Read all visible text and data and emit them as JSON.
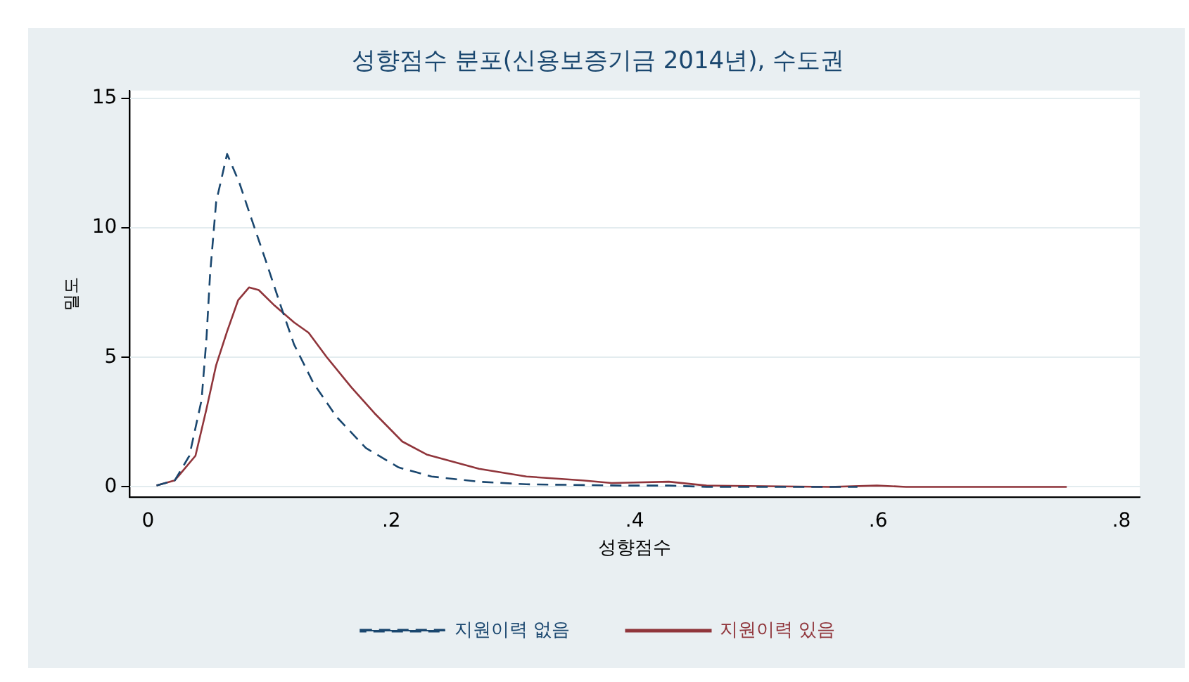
{
  "chart_data": {
    "type": "line",
    "title": "성향점수 분포(신용보증기금 2014년), 수도권",
    "xlabel": "성향점수",
    "ylabel": "밀도",
    "xlim": [
      -0.015,
      0.815
    ],
    "ylim": [
      -0.4,
      15.3
    ],
    "xticks": [
      {
        "value": 0,
        "label": "0"
      },
      {
        "value": 0.2,
        "label": ".2"
      },
      {
        "value": 0.4,
        "label": ".4"
      },
      {
        "value": 0.6,
        "label": ".6"
      },
      {
        "value": 0.8,
        "label": ".8"
      }
    ],
    "yticks": [
      0,
      5,
      10,
      15
    ],
    "grid": "y",
    "legend": "bottom",
    "marker": "none",
    "series": [
      {
        "name": "지원이력 없음",
        "color": "#1a476f",
        "line_style": "dashed",
        "x": [
          0.007,
          0.022,
          0.034,
          0.044,
          0.048,
          0.051,
          0.056,
          0.065,
          0.075,
          0.085,
          0.097,
          0.109,
          0.12,
          0.136,
          0.155,
          0.179,
          0.206,
          0.233,
          0.272,
          0.311,
          0.389,
          0.428,
          0.459,
          0.583
        ],
        "values": [
          0.05,
          0.25,
          1.2,
          3.35,
          5.7,
          8.2,
          11,
          12.85,
          11.75,
          10.35,
          8.7,
          7,
          5.5,
          4,
          2.7,
          1.5,
          0.75,
          0.4,
          0.2,
          0.1,
          0.05,
          0.05,
          0,
          0
        ]
      },
      {
        "name": "지원이력 있음",
        "color": "#90353b",
        "line_style": "solid",
        "x": [
          0.007,
          0.022,
          0.039,
          0.048,
          0.056,
          0.065,
          0.074,
          0.083,
          0.091,
          0.104,
          0.12,
          0.132,
          0.147,
          0.167,
          0.186,
          0.209,
          0.229,
          0.272,
          0.311,
          0.357,
          0.381,
          0.428,
          0.459,
          0.56,
          0.599,
          0.623,
          0.755
        ],
        "values": [
          0.05,
          0.25,
          1.2,
          3,
          4.7,
          6,
          7.2,
          7.7,
          7.6,
          7,
          6.35,
          5.95,
          5,
          3.85,
          2.85,
          1.75,
          1.25,
          0.7,
          0.4,
          0.25,
          0.15,
          0.2,
          0.05,
          0,
          0.05,
          0,
          0
        ]
      }
    ]
  }
}
